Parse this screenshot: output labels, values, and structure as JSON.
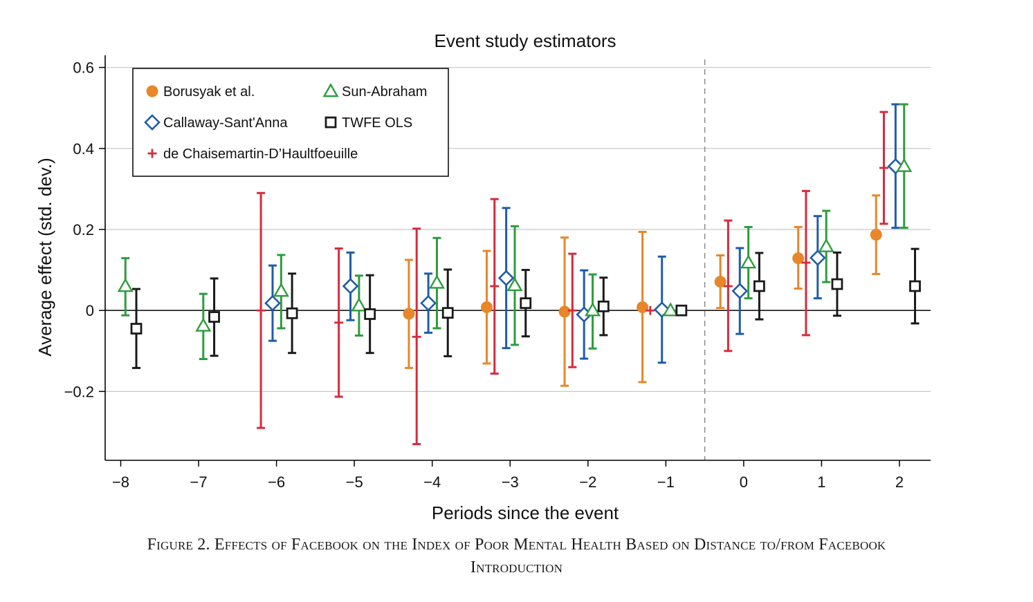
{
  "chart_data": {
    "type": "scatter",
    "title": "Event study estimators",
    "xlabel": "Periods since the event",
    "ylabel": "Average effect (std. dev.)",
    "xlim": [
      -8.2,
      2.4
    ],
    "ylim": [
      -0.37,
      0.63
    ],
    "xticks": [
      -8,
      -7,
      -6,
      -5,
      -4,
      -3,
      -2,
      -1,
      0,
      1,
      2
    ],
    "xtick_labels": [
      "−8",
      "−7",
      "−6",
      "−5",
      "−4",
      "−3",
      "−2",
      "−1",
      "0",
      "1",
      "2"
    ],
    "yticks": [
      -0.2,
      0,
      0.2,
      0.4,
      0.6
    ],
    "ytick_labels": [
      "−0.2",
      "0",
      "0.2",
      "0.4",
      "0.6"
    ],
    "grid": true,
    "reference_line_y": 0,
    "event_line_x": -0.5,
    "legend_position": "top-left",
    "series": [
      {
        "name": "Borusyak et al.",
        "color": "#e8862a",
        "marker": "circle",
        "offset": -0.3,
        "points": [
          {
            "x": -4,
            "y": -0.008,
            "lo": -0.142,
            "hi": 0.125
          },
          {
            "x": -3,
            "y": 0.008,
            "lo": -0.131,
            "hi": 0.147
          },
          {
            "x": -2,
            "y": -0.003,
            "lo": -0.186,
            "hi": 0.18
          },
          {
            "x": -1,
            "y": 0.008,
            "lo": -0.177,
            "hi": 0.194
          },
          {
            "x": 0,
            "y": 0.071,
            "lo": 0.006,
            "hi": 0.136
          },
          {
            "x": 1,
            "y": 0.129,
            "lo": 0.054,
            "hi": 0.206
          },
          {
            "x": 2,
            "y": 0.187,
            "lo": 0.09,
            "hi": 0.284
          }
        ]
      },
      {
        "name": "de Chaisemartin-D’Haultfoeuille",
        "color": "#d62a3c",
        "marker": "plus",
        "offset": -0.2,
        "points": [
          {
            "x": -6,
            "y": 0.0,
            "lo": -0.29,
            "hi": 0.29
          },
          {
            "x": -5,
            "y": -0.03,
            "lo": -0.213,
            "hi": 0.153
          },
          {
            "x": -4,
            "y": -0.065,
            "lo": -0.33,
            "hi": 0.202
          },
          {
            "x": -3,
            "y": 0.06,
            "lo": -0.156,
            "hi": 0.275
          },
          {
            "x": -2,
            "y": 0.0,
            "lo": -0.14,
            "hi": 0.14
          },
          {
            "x": -1,
            "y": 0.0,
            "lo": 0.0,
            "hi": 0.0
          },
          {
            "x": 0,
            "y": 0.06,
            "lo": -0.1,
            "hi": 0.222
          },
          {
            "x": 1,
            "y": 0.118,
            "lo": -0.061,
            "hi": 0.295
          },
          {
            "x": 2,
            "y": 0.352,
            "lo": 0.214,
            "hi": 0.49
          }
        ]
      },
      {
        "name": "Callaway-Sant'Anna",
        "color": "#1f5ca8",
        "marker": "diamond",
        "offset": -0.05,
        "points": [
          {
            "x": -6,
            "y": 0.018,
            "lo": -0.075,
            "hi": 0.111
          },
          {
            "x": -5,
            "y": 0.06,
            "lo": -0.024,
            "hi": 0.143
          },
          {
            "x": -4,
            "y": 0.018,
            "lo": -0.055,
            "hi": 0.091
          },
          {
            "x": -3,
            "y": 0.08,
            "lo": -0.093,
            "hi": 0.253
          },
          {
            "x": -2,
            "y": -0.01,
            "lo": -0.119,
            "hi": 0.099
          },
          {
            "x": -1,
            "y": 0.002,
            "lo": -0.129,
            "hi": 0.133
          },
          {
            "x": 0,
            "y": 0.048,
            "lo": -0.058,
            "hi": 0.154
          },
          {
            "x": 1,
            "y": 0.13,
            "lo": 0.03,
            "hi": 0.233
          },
          {
            "x": 2,
            "y": 0.356,
            "lo": 0.204,
            "hi": 0.509
          }
        ]
      },
      {
        "name": "Sun-Abraham",
        "color": "#2e9c3c",
        "marker": "triangle",
        "offset": 0.06,
        "points": [
          {
            "x": -8,
            "y": 0.06,
            "lo": -0.012,
            "hi": 0.129
          },
          {
            "x": -7,
            "y": -0.038,
            "lo": -0.12,
            "hi": 0.041
          },
          {
            "x": -6,
            "y": 0.048,
            "lo": -0.044,
            "hi": 0.137
          },
          {
            "x": -5,
            "y": 0.012,
            "lo": -0.062,
            "hi": 0.086
          },
          {
            "x": -4,
            "y": 0.068,
            "lo": -0.044,
            "hi": 0.179
          },
          {
            "x": -3,
            "y": 0.062,
            "lo": -0.085,
            "hi": 0.208
          },
          {
            "x": -2,
            "y": 0.0,
            "lo": -0.094,
            "hi": 0.089
          },
          {
            "x": -1,
            "y": 0.0,
            "lo": 0.0,
            "hi": 0.0
          },
          {
            "x": 0,
            "y": 0.118,
            "lo": 0.03,
            "hi": 0.206
          },
          {
            "x": 1,
            "y": 0.158,
            "lo": 0.07,
            "hi": 0.246
          },
          {
            "x": 2,
            "y": 0.356,
            "lo": 0.204,
            "hi": 0.509
          }
        ]
      },
      {
        "name": "TWFE OLS",
        "color": "#1a1a1a",
        "marker": "square",
        "offset": 0.2,
        "points": [
          {
            "x": -8,
            "y": -0.045,
            "lo": -0.142,
            "hi": 0.053
          },
          {
            "x": -7,
            "y": -0.016,
            "lo": -0.112,
            "hi": 0.079
          },
          {
            "x": -6,
            "y": -0.007,
            "lo": -0.105,
            "hi": 0.091
          },
          {
            "x": -5,
            "y": -0.009,
            "lo": -0.105,
            "hi": 0.087
          },
          {
            "x": -4,
            "y": -0.006,
            "lo": -0.113,
            "hi": 0.101
          },
          {
            "x": -3,
            "y": 0.018,
            "lo": -0.064,
            "hi": 0.1
          },
          {
            "x": -2,
            "y": 0.01,
            "lo": -0.061,
            "hi": 0.081
          },
          {
            "x": -1,
            "y": 0.0,
            "lo": 0.0,
            "hi": 0.0
          },
          {
            "x": 0,
            "y": 0.06,
            "lo": -0.022,
            "hi": 0.142
          },
          {
            "x": 1,
            "y": 0.065,
            "lo": -0.013,
            "hi": 0.143
          },
          {
            "x": 2,
            "y": 0.06,
            "lo": -0.032,
            "hi": 0.152
          }
        ]
      }
    ]
  },
  "caption": {
    "line1": "Figure 2. Effects of Facebook on the Index of Poor Mental Health Based on Distance to/from Facebook",
    "line2": "Introduction"
  }
}
